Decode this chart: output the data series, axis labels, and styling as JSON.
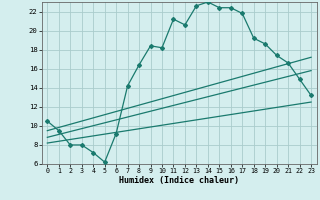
{
  "xlabel": "Humidex (Indice chaleur)",
  "bg_color": "#d4eeee",
  "grid_color": "#aacccc",
  "line_color": "#1a7a6e",
  "xlim": [
    -0.5,
    23.5
  ],
  "ylim": [
    6,
    23
  ],
  "xticks": [
    0,
    1,
    2,
    3,
    4,
    5,
    6,
    7,
    8,
    9,
    10,
    11,
    12,
    13,
    14,
    15,
    16,
    17,
    18,
    19,
    20,
    21,
    22,
    23
  ],
  "yticks": [
    6,
    8,
    10,
    12,
    14,
    16,
    18,
    20,
    22
  ],
  "main_x": [
    0,
    1,
    2,
    3,
    4,
    5,
    6,
    7,
    8,
    9,
    10,
    11,
    12,
    13,
    14,
    15,
    16,
    17,
    18,
    19,
    20,
    21,
    22,
    23
  ],
  "main_y": [
    10.5,
    9.5,
    8.0,
    8.0,
    7.2,
    6.2,
    9.2,
    14.2,
    16.4,
    18.4,
    18.2,
    21.2,
    20.6,
    22.6,
    23.0,
    22.4,
    22.4,
    21.8,
    19.2,
    18.6,
    17.4,
    16.6,
    14.9,
    13.2
  ],
  "line2_x": [
    0,
    23
  ],
  "line2_y": [
    9.5,
    17.2
  ],
  "line3_x": [
    0,
    23
  ],
  "line3_y": [
    8.8,
    15.8
  ],
  "line4_x": [
    0,
    23
  ],
  "line4_y": [
    8.2,
    12.5
  ]
}
